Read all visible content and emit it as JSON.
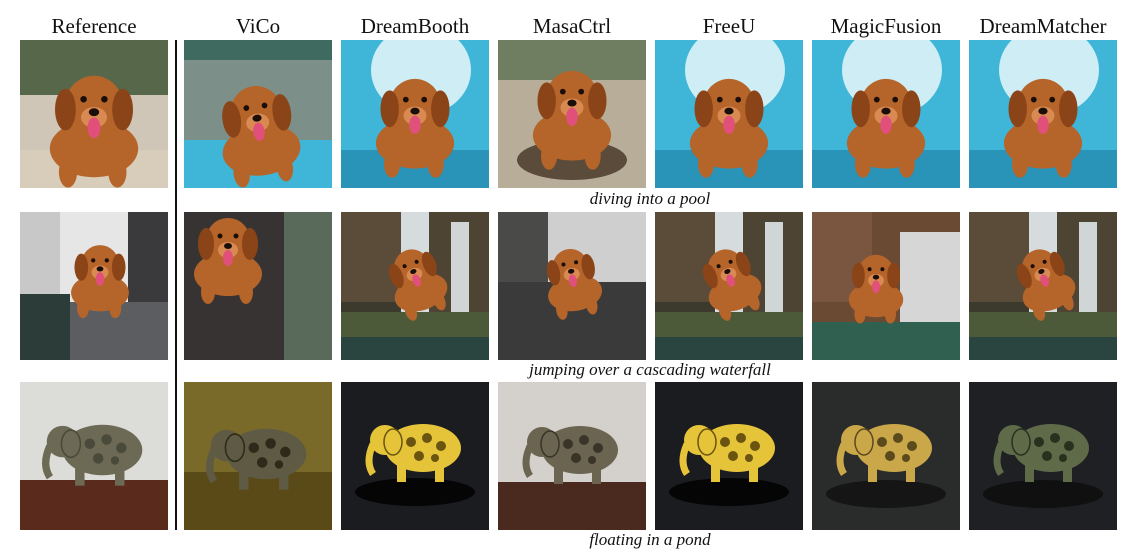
{
  "columns": [
    "Reference",
    "ViCo",
    "DreamBooth",
    "MasaCtrl",
    "FreeU",
    "MagicFusion",
    "DreamMatcher"
  ],
  "rows": [
    {
      "caption": "diving into a pool",
      "subject": "dog",
      "scenes": [
        "dog-portrait",
        "dog-swim",
        "dog-dive",
        "dog-mud",
        "dog-dive",
        "dog-dive",
        "dog-dive"
      ]
    },
    {
      "caption": "jumping over a cascading waterfall",
      "subject": "dog",
      "scenes": [
        "dog-sofa",
        "dog-wall",
        "dog-waterfall",
        "dog-rock",
        "dog-waterfall",
        "dog-waterfall-brick",
        "dog-waterfall"
      ]
    },
    {
      "caption": "floating in a pond",
      "subject": "elephant",
      "scenes": [
        "elephant-table",
        "elephant-pond-gold",
        "elephant-dark-yellow",
        "elephant-indoor",
        "elephant-dark-yellow",
        "elephant-dark-gold",
        "elephant-dark-green"
      ]
    }
  ],
  "colors": {
    "dog_fur": "#b5642a",
    "pool_water": "#3fb6d8",
    "waterfall_water": "#e8eef2",
    "rock_moss": "#4d5a3a",
    "elephant_green": "#6c6a55",
    "elephant_yellow": "#e6c43a",
    "pond_dark": "#1a1c20"
  }
}
